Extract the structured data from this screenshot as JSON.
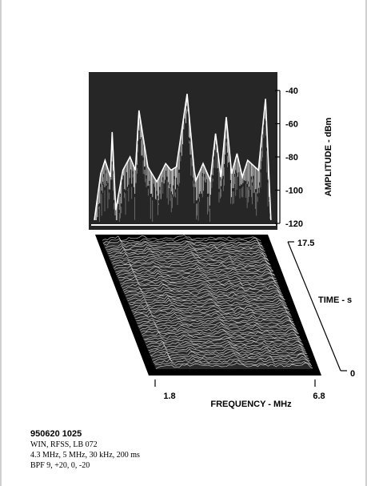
{
  "chart_data": [
    {
      "type": "area",
      "panel": "spectrum",
      "ylabel": "AMPLITUDE - dBm",
      "ylim": [
        -120,
        -40
      ],
      "yticks": [
        "-40",
        "-60",
        "-80",
        "-100",
        "-120"
      ],
      "x": [
        1.8,
        1.98,
        2.1,
        2.25,
        2.3,
        2.4,
        2.6,
        2.8,
        2.95,
        3.05,
        3.3,
        3.55,
        3.8,
        3.95,
        4.1,
        4.4,
        4.6,
        4.65,
        4.85,
        5.05,
        5.2,
        5.35,
        5.5,
        5.65,
        5.8,
        5.95,
        6.1,
        6.4,
        6.6,
        6.75
      ],
      "series": [
        {
          "values": [
            -118,
            -90,
            -82,
            -92,
            -65,
            -112,
            -88,
            -80,
            -88,
            -52,
            -86,
            -95,
            -84,
            -88,
            -86,
            -42,
            -88,
            -94,
            -84,
            -94,
            -66,
            -92,
            -56,
            -90,
            -78,
            -92,
            -82,
            -88,
            -45,
            -118
          ]
        }
      ]
    },
    {
      "type": "line",
      "panel": "waterfall",
      "xlabel": "FREQUENCY - MHz",
      "ylabel": "TIME - s",
      "xlim": [
        1.8,
        6.8
      ],
      "ylim": [
        0,
        17.5
      ],
      "xticks": [
        "1.8",
        "6.8"
      ],
      "yticks": [
        "17.5",
        "0"
      ]
    }
  ],
  "caption": {
    "id": "950620 1025",
    "lines": [
      "WIN, RFSS, LB 072",
      "4.3 MHz, 5 MHz, 30 kHz, 200 ms",
      "BPF 9, +20, 0, -20"
    ]
  },
  "colors": {
    "panel_bg": "#262626",
    "trace": "#ffffff",
    "frame": "#000000"
  }
}
